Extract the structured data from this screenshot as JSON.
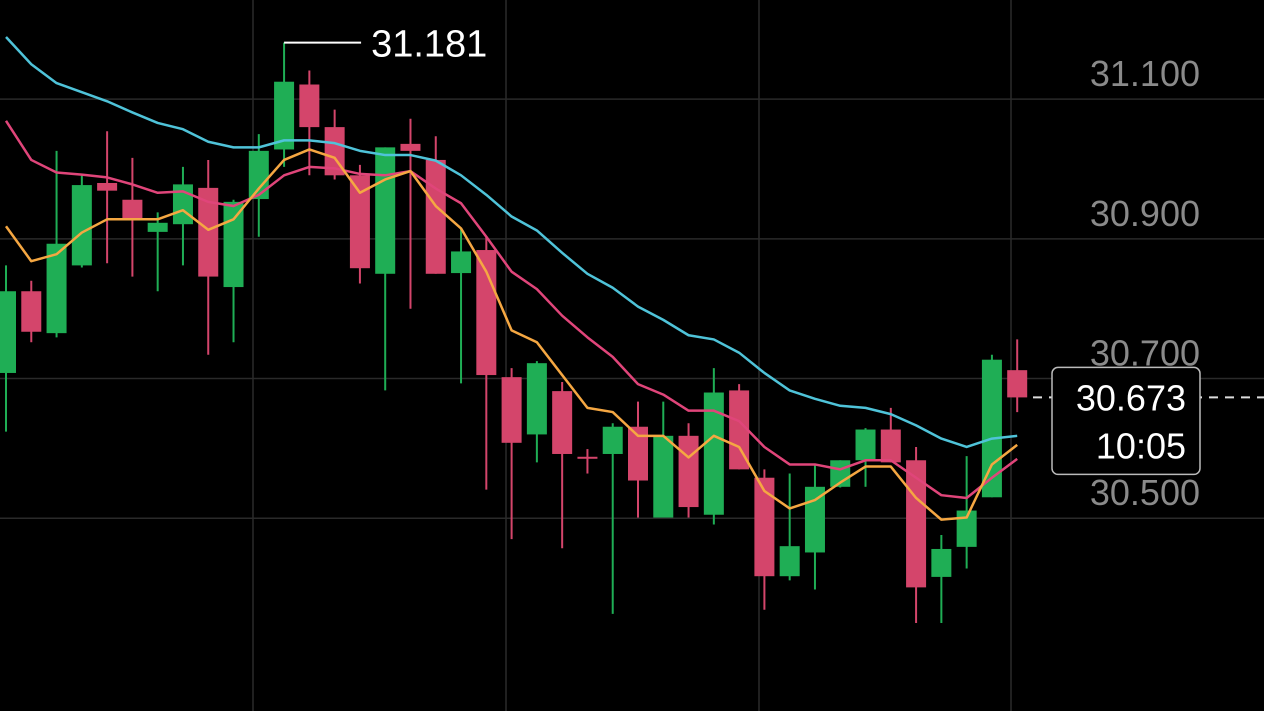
{
  "chart_data": {
    "type": "candlestick",
    "categories": [
      null,
      null,
      null,
      null,
      null,
      null,
      null,
      null,
      null,
      null,
      null,
      null,
      null,
      null,
      null,
      null,
      null,
      null,
      null,
      null,
      null,
      null,
      null,
      null,
      null,
      null,
      null,
      null,
      null,
      null,
      null,
      null,
      null,
      null,
      null,
      null,
      null,
      null,
      null,
      null,
      null
    ],
    "open": [
      30.708,
      30.825,
      30.765,
      30.862,
      30.98,
      30.956,
      30.91,
      30.921,
      30.973,
      30.831,
      30.957,
      31.028,
      31.121,
      31.06,
      30.991,
      30.85,
      31.036,
      31.013,
      30.851,
      30.884,
      30.702,
      30.62,
      30.682,
      30.588,
      30.592,
      30.631,
      30.501,
      30.618,
      30.505,
      30.683,
      30.558,
      30.417,
      30.451,
      30.545,
      30.583,
      30.627,
      30.583,
      30.416,
      30.459,
      30.53,
      30.712
    ],
    "high": [
      30.862,
      30.84,
      31.026,
      30.991,
      31.054,
      31.016,
      30.938,
      31.003,
      31.013,
      30.956,
      31.05,
      31.181,
      31.141,
      31.085,
      31.006,
      31.031,
      31.072,
      31.047,
      30.915,
      30.903,
      30.715,
      30.725,
      30.695,
      30.599,
      30.636,
      30.667,
      30.667,
      30.636,
      30.715,
      30.692,
      30.57,
      30.564,
      30.577,
      30.583,
      30.629,
      30.658,
      30.602,
      30.476,
      30.589,
      30.734,
      30.756
    ],
    "low": [
      30.624,
      30.752,
      30.759,
      30.859,
      30.865,
      30.846,
      30.825,
      30.862,
      30.734,
      30.752,
      30.903,
      31.003,
      30.991,
      30.985,
      30.836,
      30.683,
      30.8,
      30.85,
      30.693,
      30.541,
      30.47,
      30.58,
      30.457,
      30.564,
      30.363,
      30.501,
      30.501,
      30.501,
      30.491,
      30.57,
      30.369,
      30.411,
      30.398,
      30.544,
      30.545,
      30.58,
      30.35,
      30.35,
      30.428,
      30.53,
      30.652
    ],
    "close": [
      30.825,
      30.767,
      30.893,
      30.977,
      30.969,
      30.927,
      30.923,
      30.978,
      30.846,
      30.953,
      31.026,
      31.125,
      31.06,
      30.991,
      30.858,
      31.031,
      31.026,
      30.85,
      30.882,
      30.705,
      30.608,
      30.722,
      30.592,
      30.587,
      30.631,
      30.554,
      30.618,
      30.516,
      30.68,
      30.57,
      30.417,
      30.46,
      30.545,
      30.583,
      30.627,
      30.58,
      30.401,
      30.456,
      30.511,
      30.727,
      30.673
    ],
    "up_color": "#1fae55",
    "down_color": "#d4456b",
    "lines": [
      {
        "color": "#4fc3d9",
        "values": [
          31.189,
          31.15,
          31.123,
          31.11,
          31.097,
          31.081,
          31.066,
          31.057,
          31.039,
          31.031,
          31.031,
          31.041,
          31.041,
          31.037,
          31.026,
          31.02,
          31.02,
          31.012,
          30.991,
          30.963,
          30.932,
          30.912,
          30.88,
          30.85,
          30.83,
          30.803,
          30.784,
          30.762,
          30.756,
          30.737,
          30.708,
          30.683,
          30.671,
          30.661,
          30.658,
          30.649,
          30.633,
          30.614,
          30.602,
          30.614,
          30.618
        ]
      },
      {
        "color": "#e0457a",
        "values": [
          31.069,
          31.013,
          30.995,
          30.992,
          30.988,
          30.978,
          30.966,
          30.968,
          30.953,
          30.947,
          30.963,
          30.991,
          31.003,
          31.001,
          30.993,
          30.991,
          30.997,
          30.972,
          30.951,
          30.903,
          30.853,
          30.828,
          30.79,
          30.759,
          30.731,
          30.692,
          30.677,
          30.654,
          30.654,
          30.639,
          30.602,
          30.577,
          30.577,
          30.57,
          30.583,
          30.583,
          30.558,
          30.533,
          30.529,
          30.558,
          30.585
        ]
      },
      {
        "color": "#f5a742",
        "values": [
          30.918,
          30.868,
          30.878,
          30.909,
          30.928,
          30.928,
          30.928,
          30.941,
          30.913,
          30.928,
          30.972,
          31.013,
          31.028,
          31.016,
          30.966,
          30.985,
          30.997,
          30.947,
          30.915,
          30.853,
          30.769,
          30.752,
          30.705,
          30.658,
          30.652,
          30.618,
          30.618,
          30.587,
          30.618,
          30.602,
          30.539,
          30.514,
          30.526,
          30.551,
          30.574,
          30.574,
          30.529,
          30.498,
          30.501,
          30.577,
          30.605
        ]
      }
    ],
    "ylim": [
      30.224,
      31.242
    ],
    "yticks": [
      {
        "value": 30.5,
        "label": "30.500"
      },
      {
        "value": 30.7,
        "label": "30.700"
      },
      {
        "value": 30.9,
        "label": "30.900"
      },
      {
        "value": 31.1,
        "label": "31.100"
      }
    ],
    "grid": true,
    "last_time": "10:05"
  }
}
